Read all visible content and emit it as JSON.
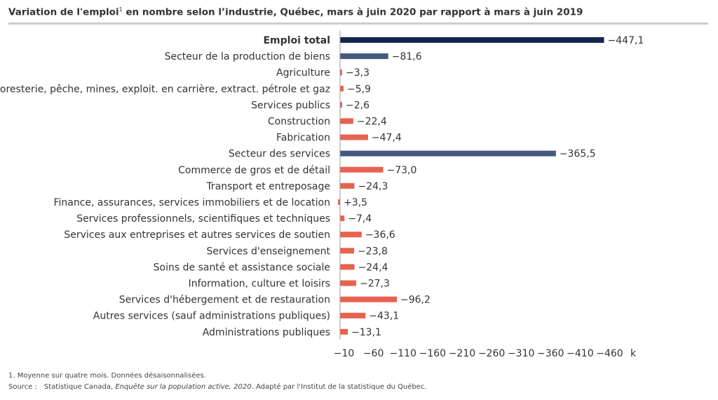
{
  "chart_data": {
    "type": "bar",
    "orientation": "horizontal",
    "title": "Variation de l'emploi",
    "title_superscript": "1",
    "title_suffix": " en nombre selon l’industrie, Québec, mars à juin 2020 par rapport à mars à juin 2019",
    "xlabel": "k",
    "xlim": [
      -10,
      -480
    ],
    "xticks": [
      -10,
      -60,
      -110,
      -160,
      -210,
      -260,
      -310,
      -360,
      -410,
      -460
    ],
    "xtick_labels": [
      "−10",
      "−60",
      "−110",
      "−160",
      "−210",
      "−260",
      "−310",
      "−360",
      "−410",
      "−460"
    ],
    "categories": [
      {
        "label": "Emploi total",
        "value": -447.1,
        "value_label": "−447,1",
        "level": "total"
      },
      {
        "label": "Secteur de la production de biens",
        "value": -81.6,
        "value_label": "−81,6",
        "level": "sector"
      },
      {
        "label": "Agriculture",
        "value": -3.3,
        "value_label": "−3,3",
        "level": "industry"
      },
      {
        "label": "Foresterie, pêche, mines, exploit. en carrière, extract. pétrole et gaz",
        "value": -5.9,
        "value_label": "−5,9",
        "level": "industry"
      },
      {
        "label": "Services publics",
        "value": -2.6,
        "value_label": "−2,6",
        "level": "industry"
      },
      {
        "label": "Construction",
        "value": -22.4,
        "value_label": "−22,4",
        "level": "industry"
      },
      {
        "label": "Fabrication",
        "value": -47.4,
        "value_label": "−47,4",
        "level": "industry"
      },
      {
        "label": "Secteur des services",
        "value": -365.5,
        "value_label": "−365,5",
        "level": "sector"
      },
      {
        "label": "Commerce de gros et de détail",
        "value": -73.0,
        "value_label": "−73,0",
        "level": "industry"
      },
      {
        "label": "Transport et entreposage",
        "value": -24.3,
        "value_label": "−24,3",
        "level": "industry"
      },
      {
        "label": "Finance, assurances, services immobiliers et de location",
        "value": 3.5,
        "value_label": "+3,5",
        "level": "industry"
      },
      {
        "label": "Services professionnels, scientifiques et techniques",
        "value": -7.4,
        "value_label": "−7,4",
        "level": "industry"
      },
      {
        "label": "Services aux entreprises et autres services de soutien",
        "value": -36.6,
        "value_label": "−36,6",
        "level": "industry"
      },
      {
        "label": "Services d'enseignement",
        "value": -23.8,
        "value_label": "−23,8",
        "level": "industry"
      },
      {
        "label": "Soins de santé et assistance sociale",
        "value": -24.4,
        "value_label": "−24,4",
        "level": "industry"
      },
      {
        "label": "Information, culture et loisirs",
        "value": -27.3,
        "value_label": "−27,3",
        "level": "industry"
      },
      {
        "label": "Services d'hébergement et de restauration",
        "value": -96.2,
        "value_label": "−96,2",
        "level": "industry"
      },
      {
        "label": "Autres services (sauf administrations publiques)",
        "value": -43.1,
        "value_label": "−43,1",
        "level": "industry"
      },
      {
        "label": "Administrations publiques",
        "value": -13.1,
        "value_label": "−13,1",
        "level": "industry"
      }
    ],
    "colors": {
      "total": "#14264d",
      "sector": "#44597d",
      "industry": "#e9614f",
      "axis": "#999999",
      "title_rule": "#cccccc"
    }
  },
  "notes": {
    "footnote": "1.  Moyenne sur quatre mois. Données désaisonnalisées.",
    "source_label": "Source :",
    "source_survey": "Statistique Canada, ",
    "source_title": "Enquête sur la population active, 2020",
    "source_rest": ". Adapté par l'Institut de la statistique du Québec."
  }
}
